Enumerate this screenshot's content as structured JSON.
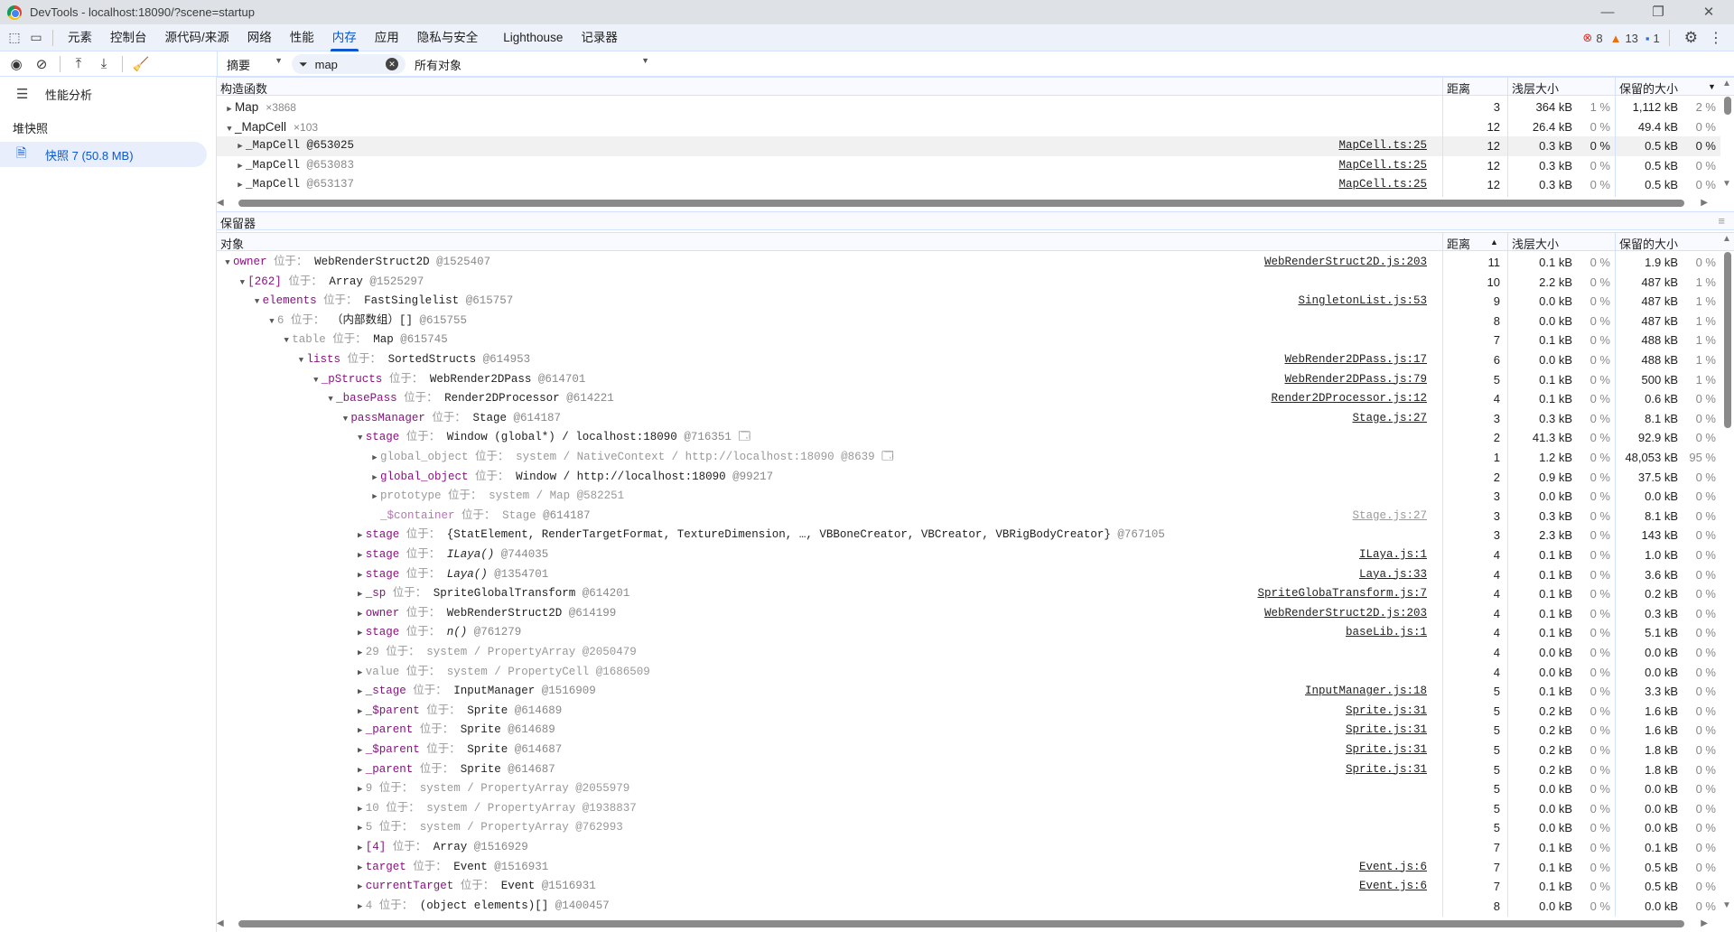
{
  "window": {
    "title": "DevTools - localhost:18090/?scene=startup"
  },
  "tabs": [
    "元素",
    "控制台",
    "源代码/来源",
    "网络",
    "性能",
    "内存",
    "应用",
    "隐私与安全",
    "Lighthouse",
    "记录器"
  ],
  "active_tab": "内存",
  "status": {
    "errors": "8",
    "warnings": "13",
    "messages": "1",
    "error_color": "#d93025",
    "warning_color": "#e8710a",
    "message_color": "#1a73e8"
  },
  "toolbar": {
    "view": "摘要",
    "filter_value": "map",
    "filter_scope": "所有对象"
  },
  "sidebar": {
    "profiling": "性能分析",
    "heap_snapshots": "堆快照",
    "snapshot": "快照 7 (50.8 MB)"
  },
  "columns": {
    "constructor": "构造函数",
    "distance": "距离",
    "shallow": "浅层大小",
    "retained": "保留的大小",
    "retainers": "保留器",
    "object": "对象"
  },
  "constructors": [
    {
      "level": 0,
      "exp": false,
      "sans": true,
      "name": "Map",
      "count": "×3868",
      "d": "3",
      "s": "364 kB",
      "sp": "1 %",
      "r": "1,112 kB",
      "rp": "2 %"
    },
    {
      "level": 0,
      "exp": true,
      "sans": true,
      "name": "_MapCell",
      "count": "×103",
      "d": "12",
      "s": "26.4 kB",
      "sp": "0 %",
      "r": "49.4 kB",
      "rp": "0 %"
    },
    {
      "level": 1,
      "exp": false,
      "name": "_MapCell",
      "id": "@653025",
      "link": "MapCell.ts:25",
      "d": "12",
      "s": "0.3 kB",
      "sp": "0 %",
      "r": "0.5 kB",
      "rp": "0 %",
      "sel": true
    },
    {
      "level": 1,
      "exp": false,
      "name": "_MapCell",
      "id": "@653083",
      "link": "MapCell.ts:25",
      "d": "12",
      "s": "0.3 kB",
      "sp": "0 %",
      "r": "0.5 kB",
      "rp": "0 %"
    },
    {
      "level": 1,
      "exp": false,
      "name": "_MapCell",
      "id": "@653137",
      "link": "MapCell.ts:25",
      "d": "12",
      "s": "0.3 kB",
      "sp": "0 %",
      "r": "0.5 kB",
      "rp": "0 %"
    }
  ],
  "at_label": "位于：",
  "retainers": [
    {
      "level": 0,
      "exp": true,
      "name": "owner",
      "nc": "p",
      "type": "WebRenderStruct2D",
      "tc": "",
      "id": "@1525407",
      "link": "WebRenderStruct2D.js:203",
      "d": "11",
      "s": "0.1 kB",
      "sp": "0 %",
      "r": "1.9 kB",
      "rp": "0 %"
    },
    {
      "level": 1,
      "exp": true,
      "name": "[262]",
      "nc": "p",
      "type": "Array",
      "tc": "",
      "id": "@1525297",
      "link": "",
      "d": "10",
      "s": "2.2 kB",
      "sp": "0 %",
      "r": "487 kB",
      "rp": "1 %"
    },
    {
      "level": 2,
      "exp": true,
      "name": "elements",
      "nc": "p",
      "type": "FastSinglelist",
      "tc": "",
      "id": "@615757",
      "link": "SingletonList.js:53",
      "d": "9",
      "s": "0.0 kB",
      "sp": "0 %",
      "r": "487 kB",
      "rp": "1 %"
    },
    {
      "level": 3,
      "exp": true,
      "name": "6",
      "nc": "g",
      "type": "（内部数组）[]",
      "tc": "",
      "id": "@615755",
      "link": "",
      "d": "8",
      "s": "0.0 kB",
      "sp": "0 %",
      "r": "487 kB",
      "rp": "1 %"
    },
    {
      "level": 4,
      "exp": true,
      "name": "table",
      "nc": "g",
      "type": "Map",
      "tc": "",
      "id": "@615745",
      "link": "",
      "d": "7",
      "s": "0.1 kB",
      "sp": "0 %",
      "r": "488 kB",
      "rp": "1 %"
    },
    {
      "level": 5,
      "exp": true,
      "name": "lists",
      "nc": "p",
      "type": "SortedStructs",
      "tc": "",
      "id": "@614953",
      "link": "WebRender2DPass.js:17",
      "d": "6",
      "s": "0.0 kB",
      "sp": "0 %",
      "r": "488 kB",
      "rp": "1 %"
    },
    {
      "level": 6,
      "exp": true,
      "name": "_pStructs",
      "nc": "p",
      "type": "WebRender2DPass",
      "tc": "",
      "id": "@614701",
      "link": "WebRender2DPass.js:79",
      "d": "5",
      "s": "0.1 kB",
      "sp": "0 %",
      "r": "500 kB",
      "rp": "1 %"
    },
    {
      "level": 7,
      "exp": true,
      "name": "_basePass",
      "nc": "p",
      "type": "Render2DProcessor",
      "tc": "",
      "id": "@614221",
      "link": "Render2DProcessor.js:12",
      "d": "4",
      "s": "0.1 kB",
      "sp": "0 %",
      "r": "0.6 kB",
      "rp": "0 %"
    },
    {
      "level": 8,
      "exp": true,
      "name": "passManager",
      "nc": "p",
      "type": "Stage",
      "tc": "",
      "id": "@614187",
      "link": "Stage.js:27",
      "d": "3",
      "s": "0.3 kB",
      "sp": "0 %",
      "r": "8.1 kB",
      "rp": "0 %"
    },
    {
      "level": 9,
      "exp": true,
      "name": "stage",
      "nc": "p",
      "type": "Window (global*) / localhost:18090",
      "tc": "",
      "id": "@716351",
      "win": true,
      "link": "",
      "d": "2",
      "s": "41.3 kB",
      "sp": "0 %",
      "r": "92.9 kB",
      "rp": "0 %"
    },
    {
      "level": 10,
      "exp": false,
      "name": "global_object",
      "nc": "g",
      "type": "system / NativeContext / http://localhost:18090",
      "tc": "g",
      "id": "@8639",
      "win": true,
      "link": "",
      "d": "1",
      "s": "1.2 kB",
      "sp": "0 %",
      "r": "48,053 kB",
      "rp": "95 %"
    },
    {
      "level": 10,
      "exp": false,
      "name": "global_object",
      "nc": "p",
      "type": "Window / http://localhost:18090",
      "tc": "",
      "id": "@99217",
      "link": "",
      "d": "2",
      "s": "0.9 kB",
      "sp": "0 %",
      "r": "37.5 kB",
      "rp": "0 %"
    },
    {
      "level": 10,
      "exp": false,
      "name": "prototype",
      "nc": "g",
      "type": "system / Map",
      "tc": "g",
      "id": "@582251",
      "link": "",
      "d": "3",
      "s": "0.0 kB",
      "sp": "0 %",
      "r": "0.0 kB",
      "rp": "0 %"
    },
    {
      "level": 10,
      "exp": null,
      "name": "_$container",
      "nc": "pl",
      "type": "Stage",
      "tc": "g",
      "id": "@614187",
      "link": "Stage.js:27",
      "dim": true,
      "d": "3",
      "s": "0.3 kB",
      "sp": "0 %",
      "r": "8.1 kB",
      "rp": "0 %"
    },
    {
      "level": 9,
      "exp": false,
      "name": "stage",
      "nc": "p",
      "type": "{StatElement, RenderTargetFormat, TextureDimension, …, VBBoneCreator, VBCreator, VBRigBodyCreator}",
      "tc": "",
      "id": "@767105",
      "link": "",
      "d": "3",
      "s": "2.3 kB",
      "sp": "0 %",
      "r": "143 kB",
      "rp": "0 %"
    },
    {
      "level": 9,
      "exp": false,
      "name": "stage",
      "nc": "p",
      "type": "ILaya()",
      "tc": "i",
      "id": "@744035",
      "link": "ILaya.js:1",
      "d": "4",
      "s": "0.1 kB",
      "sp": "0 %",
      "r": "1.0 kB",
      "rp": "0 %"
    },
    {
      "level": 9,
      "exp": false,
      "name": "stage",
      "nc": "p",
      "type": "Laya()",
      "tc": "i",
      "id": "@1354701",
      "link": "Laya.js:33",
      "d": "4",
      "s": "0.1 kB",
      "sp": "0 %",
      "r": "3.6 kB",
      "rp": "0 %"
    },
    {
      "level": 9,
      "exp": false,
      "name": "_sp",
      "nc": "p",
      "type": "SpriteGlobalTransform",
      "tc": "",
      "id": "@614201",
      "link": "SpriteGlobaTransform.js:7",
      "d": "4",
      "s": "0.1 kB",
      "sp": "0 %",
      "r": "0.2 kB",
      "rp": "0 %"
    },
    {
      "level": 9,
      "exp": false,
      "name": "owner",
      "nc": "p",
      "type": "WebRenderStruct2D",
      "tc": "",
      "id": "@614199",
      "link": "WebRenderStruct2D.js:203",
      "d": "4",
      "s": "0.1 kB",
      "sp": "0 %",
      "r": "0.3 kB",
      "rp": "0 %"
    },
    {
      "level": 9,
      "exp": false,
      "name": "stage",
      "nc": "p",
      "type": "n()",
      "tc": "i",
      "id": "@761279",
      "link": "baseLib.js:1",
      "d": "4",
      "s": "0.1 kB",
      "sp": "0 %",
      "r": "5.1 kB",
      "rp": "0 %"
    },
    {
      "level": 9,
      "exp": false,
      "name": "29",
      "nc": "g",
      "type": "system / PropertyArray",
      "tc": "g",
      "id": "@2050479",
      "link": "",
      "d": "4",
      "s": "0.0 kB",
      "sp": "0 %",
      "r": "0.0 kB",
      "rp": "0 %"
    },
    {
      "level": 9,
      "exp": false,
      "name": "value",
      "nc": "g",
      "type": "system / PropertyCell",
      "tc": "g",
      "id": "@1686509",
      "link": "",
      "d": "4",
      "s": "0.0 kB",
      "sp": "0 %",
      "r": "0.0 kB",
      "rp": "0 %"
    },
    {
      "level": 9,
      "exp": false,
      "name": "_stage",
      "nc": "p",
      "type": "InputManager",
      "tc": "",
      "id": "@1516909",
      "link": "InputManager.js:18",
      "d": "5",
      "s": "0.1 kB",
      "sp": "0 %",
      "r": "3.3 kB",
      "rp": "0 %"
    },
    {
      "level": 9,
      "exp": false,
      "name": "_$parent",
      "nc": "p",
      "type": "Sprite",
      "tc": "",
      "id": "@614689",
      "link": "Sprite.js:31",
      "d": "5",
      "s": "0.2 kB",
      "sp": "0 %",
      "r": "1.6 kB",
      "rp": "0 %"
    },
    {
      "level": 9,
      "exp": false,
      "name": "_parent",
      "nc": "p",
      "type": "Sprite",
      "tc": "",
      "id": "@614689",
      "link": "Sprite.js:31",
      "d": "5",
      "s": "0.2 kB",
      "sp": "0 %",
      "r": "1.6 kB",
      "rp": "0 %"
    },
    {
      "level": 9,
      "exp": false,
      "name": "_$parent",
      "nc": "p",
      "type": "Sprite",
      "tc": "",
      "id": "@614687",
      "link": "Sprite.js:31",
      "d": "5",
      "s": "0.2 kB",
      "sp": "0 %",
      "r": "1.8 kB",
      "rp": "0 %"
    },
    {
      "level": 9,
      "exp": false,
      "name": "_parent",
      "nc": "p",
      "type": "Sprite",
      "tc": "",
      "id": "@614687",
      "link": "Sprite.js:31",
      "d": "5",
      "s": "0.2 kB",
      "sp": "0 %",
      "r": "1.8 kB",
      "rp": "0 %"
    },
    {
      "level": 9,
      "exp": false,
      "name": "9",
      "nc": "g",
      "type": "system / PropertyArray",
      "tc": "g",
      "id": "@2055979",
      "link": "",
      "d": "5",
      "s": "0.0 kB",
      "sp": "0 %",
      "r": "0.0 kB",
      "rp": "0 %"
    },
    {
      "level": 9,
      "exp": false,
      "name": "10",
      "nc": "g",
      "type": "system / PropertyArray",
      "tc": "g",
      "id": "@1938837",
      "link": "",
      "d": "5",
      "s": "0.0 kB",
      "sp": "0 %",
      "r": "0.0 kB",
      "rp": "0 %"
    },
    {
      "level": 9,
      "exp": false,
      "name": "5",
      "nc": "g",
      "type": "system / PropertyArray",
      "tc": "g",
      "id": "@762993",
      "link": "",
      "d": "5",
      "s": "0.0 kB",
      "sp": "0 %",
      "r": "0.0 kB",
      "rp": "0 %"
    },
    {
      "level": 9,
      "exp": false,
      "name": "[4]",
      "nc": "p",
      "type": "Array",
      "tc": "",
      "id": "@1516929",
      "link": "",
      "d": "7",
      "s": "0.1 kB",
      "sp": "0 %",
      "r": "0.1 kB",
      "rp": "0 %"
    },
    {
      "level": 9,
      "exp": false,
      "name": "target",
      "nc": "p",
      "type": "Event",
      "tc": "",
      "id": "@1516931",
      "link": "Event.js:6",
      "d": "7",
      "s": "0.1 kB",
      "sp": "0 %",
      "r": "0.5 kB",
      "rp": "0 %"
    },
    {
      "level": 9,
      "exp": false,
      "name": "currentTarget",
      "nc": "p",
      "type": "Event",
      "tc": "",
      "id": "@1516931",
      "link": "Event.js:6",
      "d": "7",
      "s": "0.1 kB",
      "sp": "0 %",
      "r": "0.5 kB",
      "rp": "0 %"
    },
    {
      "level": 9,
      "exp": false,
      "name": "4",
      "nc": "g",
      "type": "(object elements)[]",
      "tc": "",
      "id": "@1400457",
      "link": "",
      "d": "8",
      "s": "0.0 kB",
      "sp": "0 %",
      "r": "0.0 kB",
      "rp": "0 %"
    }
  ]
}
